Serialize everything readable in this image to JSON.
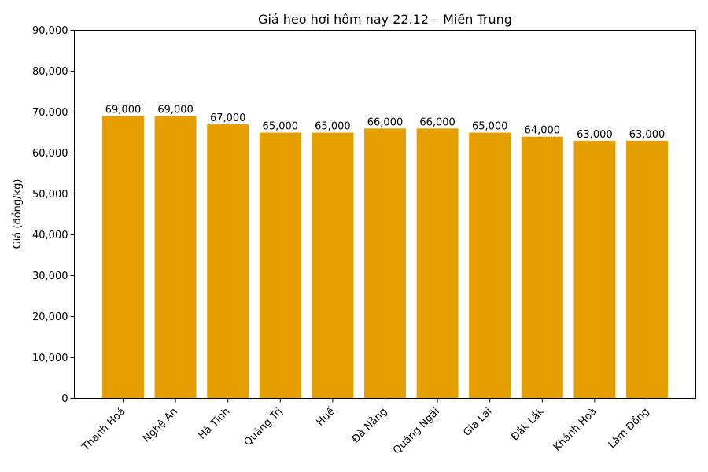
{
  "chart_data": {
    "type": "bar",
    "title": "Giá heo hơi hôm nay 22.12 – Miền Trung",
    "xlabel": "",
    "ylabel": "Giá (đồng/kg)",
    "categories": [
      "Thanh Hoá",
      "Nghệ An",
      "Hà Tĩnh",
      "Quảng Trị",
      "Huế",
      "Đà Nẵng",
      "Quảng Ngãi",
      "Gia Lai",
      "Đắk Lắk",
      "Khánh Hoà",
      "Lâm Đồng"
    ],
    "values": [
      69000,
      69000,
      67000,
      65000,
      65000,
      66000,
      66000,
      65000,
      64000,
      63000,
      63000
    ],
    "value_labels": [
      "69,000",
      "69,000",
      "67,000",
      "65,000",
      "65,000",
      "66,000",
      "66,000",
      "65,000",
      "64,000",
      "63,000",
      "63,000"
    ],
    "ylim": [
      0,
      90000
    ],
    "yticks": [
      0,
      10000,
      20000,
      30000,
      40000,
      50000,
      60000,
      70000,
      80000,
      90000
    ],
    "ytick_labels": [
      "0",
      "10,000",
      "20,000",
      "30,000",
      "40,000",
      "50,000",
      "60,000",
      "70,000",
      "80,000",
      "90,000"
    ],
    "grid": false,
    "legend": null,
    "bar_color": "#E69F00"
  }
}
